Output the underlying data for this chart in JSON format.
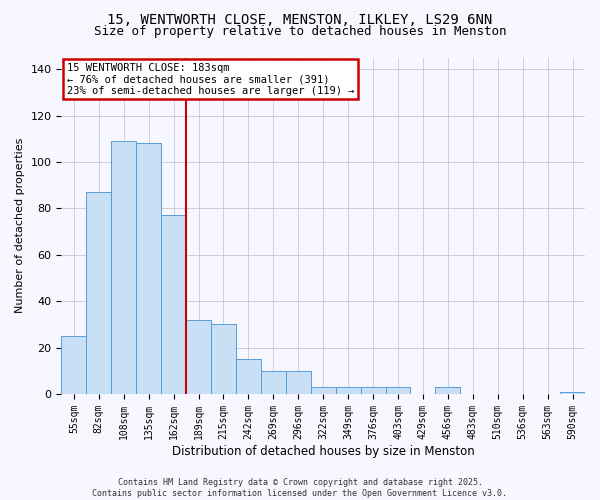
{
  "title_line1": "15, WENTWORTH CLOSE, MENSTON, ILKLEY, LS29 6NN",
  "title_line2": "Size of property relative to detached houses in Menston",
  "xlabel": "Distribution of detached houses by size in Menston",
  "ylabel": "Number of detached properties",
  "categories": [
    "55sqm",
    "82sqm",
    "108sqm",
    "135sqm",
    "162sqm",
    "189sqm",
    "215sqm",
    "242sqm",
    "269sqm",
    "296sqm",
    "322sqm",
    "349sqm",
    "376sqm",
    "403sqm",
    "429sqm",
    "456sqm",
    "483sqm",
    "510sqm",
    "536sqm",
    "563sqm",
    "590sqm"
  ],
  "values": [
    25,
    87,
    109,
    108,
    77,
    32,
    30,
    15,
    10,
    10,
    3,
    3,
    3,
    3,
    0,
    3,
    0,
    0,
    0,
    0,
    1
  ],
  "bar_color": "#c9dff5",
  "bar_edge_color": "#5b9bd5",
  "vertical_line_x": 4.5,
  "vertical_line_color": "#cc0000",
  "annotation_text": "15 WENTWORTH CLOSE: 183sqm\n← 76% of detached houses are smaller (391)\n23% of semi-detached houses are larger (119) →",
  "annotation_box_color": "#cc0000",
  "footer_text": "Contains HM Land Registry data © Crown copyright and database right 2025.\nContains public sector information licensed under the Open Government Licence v3.0.",
  "ylim": [
    0,
    145
  ],
  "yticks": [
    0,
    20,
    40,
    60,
    80,
    100,
    120,
    140
  ],
  "background_color": "#f7f7ff",
  "grid_color": "#c8c8dc",
  "title_fontsize": 10,
  "subtitle_fontsize": 9,
  "ylabel_fontsize": 8,
  "xlabel_fontsize": 8.5,
  "tick_fontsize": 7,
  "annotation_fontsize": 7.5,
  "footer_fontsize": 6
}
